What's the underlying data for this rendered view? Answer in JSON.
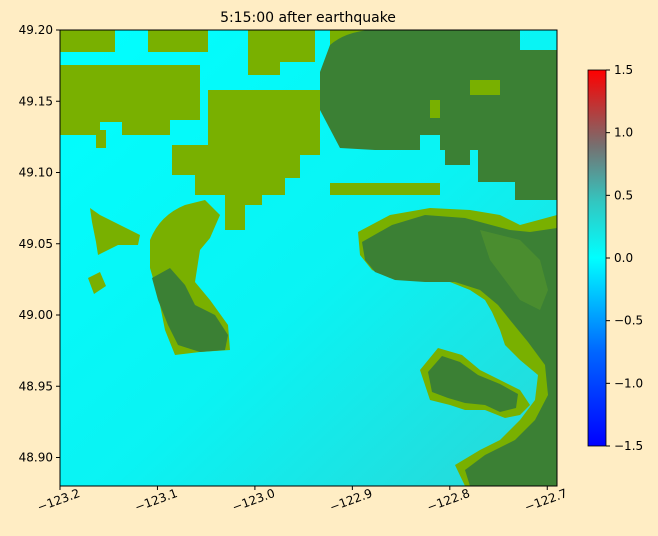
{
  "chart_data": {
    "type": "heatmap",
    "title": "5:15:00 after earthquake",
    "xlabel": "",
    "ylabel": "",
    "xlim": [
      -123.2,
      -122.69
    ],
    "ylim": [
      48.88,
      49.2
    ],
    "x_ticks": [
      -123.2,
      -123.1,
      -123.0,
      -122.9,
      -122.8,
      -122.7
    ],
    "x_tick_labels": [
      "−123.2",
      "−123.1",
      "−123.0",
      "−122.9",
      "−122.8",
      "−122.7"
    ],
    "y_ticks": [
      48.9,
      48.95,
      49.0,
      49.05,
      49.1,
      49.15,
      49.2
    ],
    "y_tick_labels": [
      "48.90",
      "48.95",
      "49.00",
      "49.05",
      "49.10",
      "49.15",
      "49.20"
    ],
    "colorbar": {
      "range": [
        -1.5,
        1.5
      ],
      "ticks": [
        -1.5,
        -1.0,
        -0.5,
        0.0,
        0.5,
        1.0,
        1.5
      ],
      "tick_labels": [
        "−1.5",
        "−1.0",
        "−0.5",
        "0.0",
        "0.5",
        "1.0",
        "1.5"
      ],
      "colors": [
        "#0000ff",
        "#00ffff",
        "#cc0000"
      ]
    },
    "colors": {
      "water_near_zero": "#00f7fb",
      "water_offshore": "#27d9d9",
      "land_low": "#79b000",
      "land_high": "#3a7f33"
    }
  }
}
